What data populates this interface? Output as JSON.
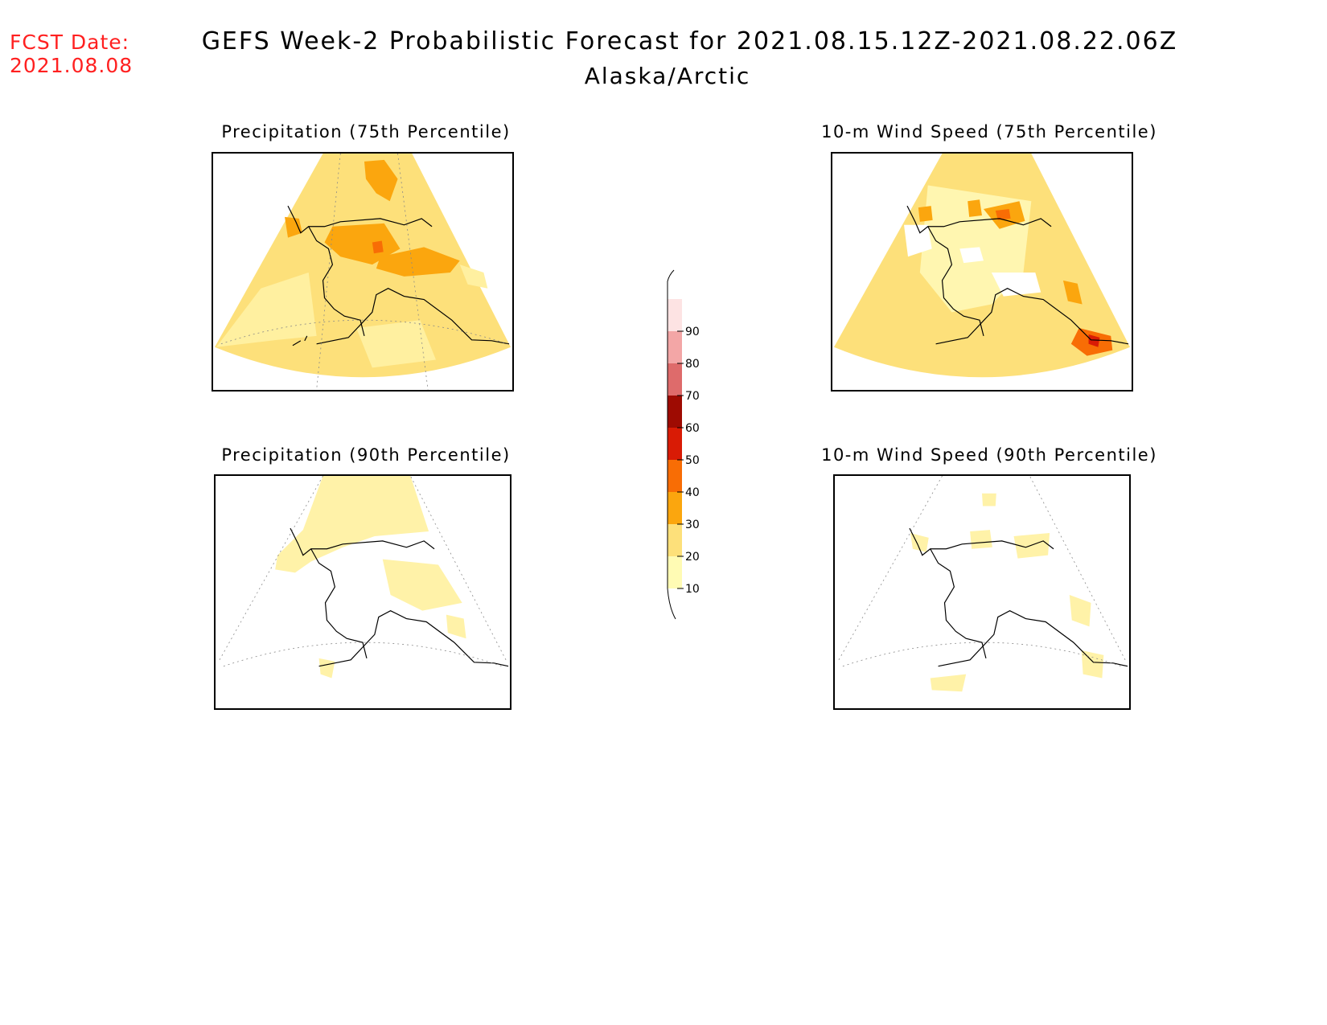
{
  "header": {
    "fcst_label": "FCST Date:",
    "fcst_date": "2021.08.08",
    "title": "GEFS Week-2 Probabilistic Forecast for 2021.08.15.12Z-2021.08.22.06Z",
    "region": "Alaska/Arctic"
  },
  "panels": [
    {
      "id": "precip75",
      "title": "Precipitation (75th Percentile)"
    },
    {
      "id": "wind75",
      "title": "10-m Wind Speed (75th Percentile)"
    },
    {
      "id": "precip90",
      "title": "Precipitation (90th Percentile)"
    },
    {
      "id": "wind90",
      "title": "10-m Wind Speed (90th Percentile)"
    }
  ],
  "colorbar": {
    "levels": [
      "10",
      "20",
      "30",
      "40",
      "50",
      "60",
      "70",
      "80",
      "90"
    ],
    "colors": [
      "#fffbb4",
      "#fde07a",
      "#fba60e",
      "#f86d05",
      "#d91b05",
      "#9e0b02",
      "#de6b6b",
      "#f3a6a6",
      "#fde3e3"
    ]
  },
  "colors": {
    "fcst_text": "#ff2020",
    "map_yellow": "#fde07a",
    "map_lightyellow": "#fff6b0",
    "map_orange": "#fba60e",
    "map_darkorange": "#f86d05"
  }
}
